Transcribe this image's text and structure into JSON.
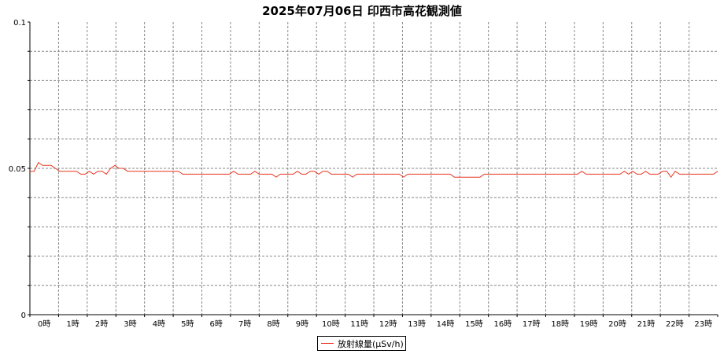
{
  "chart_data": {
    "type": "line",
    "title": "2025年07月06日 印西市高花観測値",
    "ylim": [
      0,
      0.1
    ],
    "y_ticks": [
      "0",
      "0.05",
      "0.1"
    ],
    "x_ticks": [
      "0時",
      "1時",
      "2時",
      "3時",
      "4時",
      "5時",
      "6時",
      "7時",
      "8時",
      "9時",
      "10時",
      "11時",
      "12時",
      "13時",
      "14時",
      "15時",
      "16時",
      "17時",
      "18時",
      "19時",
      "20時",
      "21時",
      "22時",
      "23時"
    ],
    "grid": true,
    "legend": "bottom-center",
    "colors": {
      "line": "#e8351e",
      "grid": "#888888"
    },
    "series": [
      {
        "name": "放射線量(μSv/h)",
        "values": [
          0.049,
          0.049,
          0.052,
          0.051,
          0.051,
          0.051,
          0.05,
          0.049,
          0.049,
          0.049,
          0.049,
          0.049,
          0.048,
          0.048,
          0.049,
          0.048,
          0.049,
          0.049,
          0.048,
          0.05,
          0.051,
          0.05,
          0.05,
          0.049,
          0.049,
          0.049,
          0.049,
          0.049,
          0.049,
          0.049,
          0.049,
          0.049,
          0.049,
          0.049,
          0.049,
          0.049,
          0.048,
          0.048,
          0.048,
          0.048,
          0.048,
          0.048,
          0.048,
          0.048,
          0.048,
          0.048,
          0.048,
          0.048,
          0.049,
          0.048,
          0.048,
          0.048,
          0.048,
          0.049,
          0.048,
          0.048,
          0.048,
          0.048,
          0.047,
          0.048,
          0.048,
          0.048,
          0.048,
          0.049,
          0.048,
          0.048,
          0.049,
          0.049,
          0.048,
          0.049,
          0.049,
          0.048,
          0.048,
          0.048,
          0.048,
          0.048,
          0.047,
          0.048,
          0.048,
          0.048,
          0.048,
          0.048,
          0.048,
          0.048,
          0.048,
          0.048,
          0.048,
          0.048,
          0.047,
          0.048,
          0.048,
          0.048,
          0.048,
          0.048,
          0.048,
          0.048,
          0.048,
          0.048,
          0.048,
          0.048,
          0.047,
          0.047,
          0.047,
          0.047,
          0.047,
          0.047,
          0.047,
          0.048,
          0.048,
          0.048,
          0.048,
          0.048,
          0.048,
          0.048,
          0.048,
          0.048,
          0.048,
          0.048,
          0.048,
          0.048,
          0.048,
          0.048,
          0.048,
          0.048,
          0.048,
          0.048,
          0.048,
          0.048,
          0.048,
          0.048,
          0.049,
          0.048,
          0.048,
          0.048,
          0.048,
          0.048,
          0.048,
          0.048,
          0.048,
          0.048,
          0.049,
          0.048,
          0.049,
          0.048,
          0.048,
          0.049,
          0.048,
          0.048,
          0.048,
          0.049,
          0.049,
          0.047,
          0.049,
          0.048,
          0.048,
          0.048,
          0.048,
          0.048,
          0.048,
          0.048,
          0.048,
          0.048,
          0.049
        ]
      }
    ]
  }
}
